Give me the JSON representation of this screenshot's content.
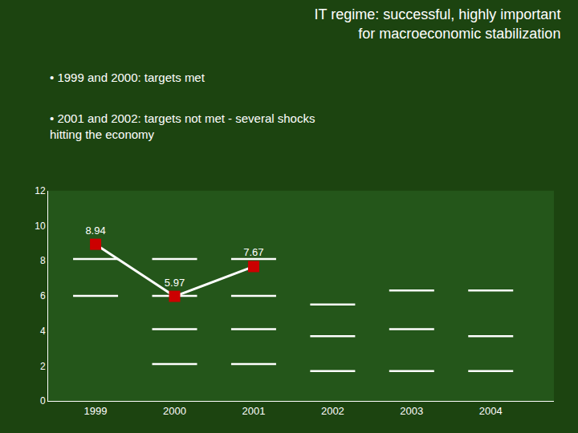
{
  "chart_data": {
    "type": "line",
    "title": "IT regime: successful, highly important\nfor macroeconomic stabilization",
    "annotations": [
      "• 1999 and 2000: targets met",
      "• 2001 and 2002: targets not met - several shocks\nhitting the economy"
    ],
    "xlim": [
      1998.4,
      2004.8
    ],
    "xticks": [
      1999,
      2000,
      2001,
      2002,
      2003,
      2004
    ],
    "ylim": [
      0,
      12
    ],
    "yticks": [
      0,
      2,
      4,
      6,
      8,
      10,
      12
    ],
    "grid": false,
    "series": [
      {
        "type": "dash",
        "marker": "line",
        "color": "#ffffff",
        "x": [
          1999,
          1999,
          2000,
          2000,
          2000,
          2000,
          2001,
          2001,
          2001,
          2001,
          2002,
          2002,
          2002,
          2003,
          2003,
          2003,
          2004,
          2004,
          2004
        ],
        "values": [
          8.1,
          6.0,
          8.1,
          6.0,
          4.1,
          2.1,
          8.1,
          6.0,
          4.1,
          2.1,
          5.5,
          3.7,
          1.7,
          6.3,
          4.1,
          1.7,
          6.3,
          3.7,
          1.7
        ]
      },
      {
        "type": "line",
        "color": "#ffffff",
        "x": [
          1999,
          2000,
          2001
        ],
        "values": [
          8.94,
          5.97,
          7.67
        ]
      },
      {
        "type": "scatter",
        "marker": "square",
        "color": "#cc0000",
        "x": [
          1999,
          2000,
          2001
        ],
        "values": [
          8.94,
          5.97,
          7.67
        ],
        "data_labels": true
      }
    ]
  }
}
